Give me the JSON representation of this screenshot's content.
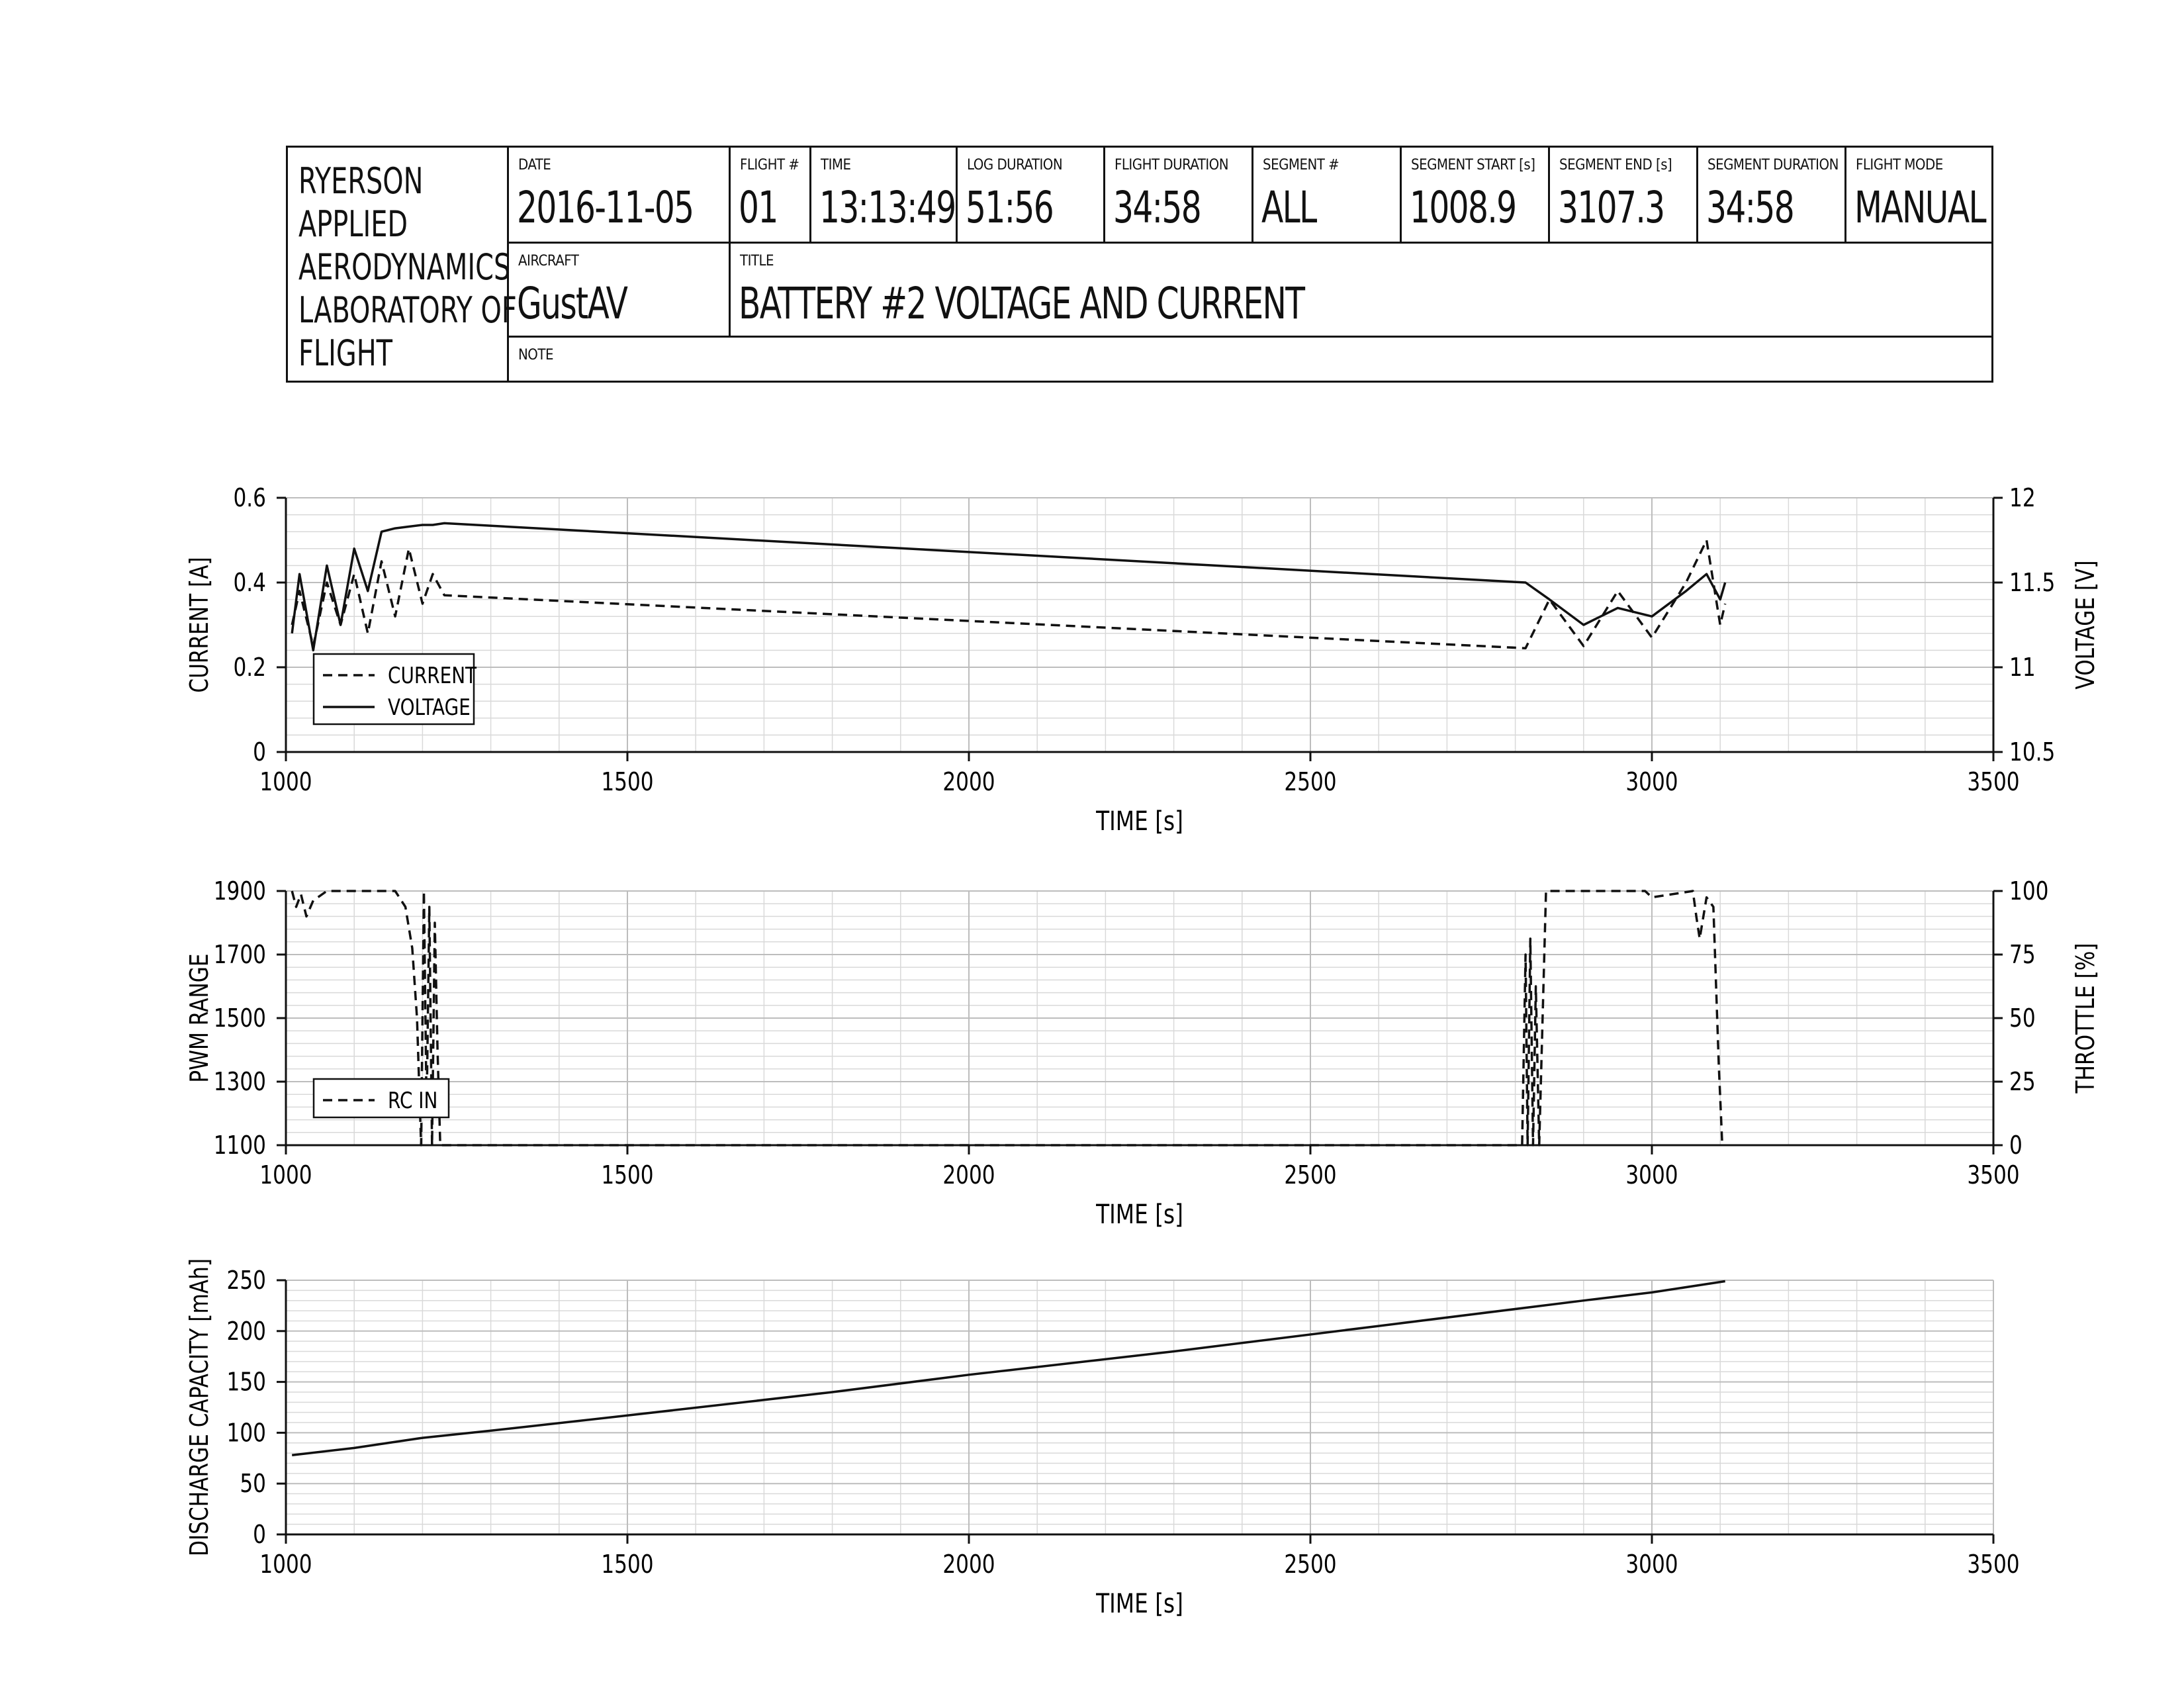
{
  "header": {
    "lab_lines": [
      "RYERSON",
      "APPLIED",
      "AERODYNAMICS",
      "LABORATORY OF",
      "FLIGHT"
    ],
    "fields": [
      {
        "label": "DATE",
        "value": "2016-11-05"
      },
      {
        "label": "FLIGHT #",
        "value": "01"
      },
      {
        "label": "TIME",
        "value": "13:13:49"
      },
      {
        "label": "LOG DURATION",
        "value": "51:56"
      },
      {
        "label": "FLIGHT DURATION",
        "value": "34:58"
      },
      {
        "label": "SEGMENT #",
        "value": "ALL"
      },
      {
        "label": "SEGMENT START [s]",
        "value": "1008.9"
      },
      {
        "label": "SEGMENT END [s]",
        "value": "3107.3"
      },
      {
        "label": "SEGMENT DURATION",
        "value": "34:58"
      },
      {
        "label": "FLIGHT MODE",
        "value": "MANUAL"
      }
    ],
    "aircraft_label": "AIRCRAFT",
    "aircraft": "GustAV",
    "title_label": "TITLE",
    "title": "BATTERY #2 VOLTAGE AND CURRENT",
    "note_label": "NOTE",
    "note": ""
  },
  "chart_data": [
    {
      "type": "line",
      "xlabel": "TIME [s]",
      "ylabel": "CURRENT [A]",
      "y2label": "VOLTAGE [V]",
      "xlim": [
        1000,
        3500
      ],
      "ylim": [
        0,
        0.6
      ],
      "y2lim": [
        10.5,
        12
      ],
      "xticks": [
        1000,
        1500,
        2000,
        2500,
        3000,
        3500
      ],
      "yticks": [
        0,
        0.2,
        0.4,
        0.6
      ],
      "y2ticks": [
        10.5,
        11,
        11.5,
        12
      ],
      "grid": true,
      "legend": "bottom-left",
      "series": [
        {
          "name": "CURRENT",
          "axis": "left",
          "style": "dashed",
          "x": [
            1008.9,
            1020,
            1040,
            1060,
            1080,
            1100,
            1120,
            1140,
            1160,
            1180,
            1200,
            1215,
            1232,
            2815,
            2850,
            2900,
            2950,
            3000,
            3050,
            3080,
            3100,
            3107.3
          ],
          "y": [
            0.3,
            0.38,
            0.25,
            0.4,
            0.3,
            0.42,
            0.28,
            0.45,
            0.32,
            0.48,
            0.35,
            0.42,
            0.37,
            0.245,
            0.36,
            0.25,
            0.38,
            0.27,
            0.4,
            0.5,
            0.3,
            0.35
          ]
        },
        {
          "name": "VOLTAGE",
          "axis": "right",
          "style": "solid",
          "x": [
            1008.9,
            1020,
            1040,
            1060,
            1080,
            1100,
            1120,
            1140,
            1160,
            1180,
            1200,
            1215,
            1232,
            2815,
            2850,
            2900,
            2950,
            3000,
            3050,
            3080,
            3100,
            3107.3
          ],
          "y": [
            11.2,
            11.55,
            11.1,
            11.6,
            11.25,
            11.7,
            11.45,
            11.8,
            11.82,
            11.83,
            11.84,
            11.84,
            11.85,
            11.5,
            11.4,
            11.25,
            11.35,
            11.3,
            11.45,
            11.55,
            11.4,
            11.5
          ]
        }
      ]
    },
    {
      "type": "line",
      "xlabel": "TIME [s]",
      "ylabel": "PWM RANGE",
      "y2label": "THROTTLE [%]",
      "xlim": [
        1000,
        3500
      ],
      "ylim": [
        1100,
        1900
      ],
      "y2lim": [
        0,
        100
      ],
      "xticks": [
        1000,
        1500,
        2000,
        2500,
        3000,
        3500
      ],
      "yticks": [
        1100,
        1300,
        1500,
        1700,
        1900
      ],
      "y2ticks": [
        0,
        25,
        50,
        75,
        100
      ],
      "grid": true,
      "legend": "bottom-left",
      "series": [
        {
          "name": "RC IN",
          "axis": "left",
          "style": "dashed",
          "x": [
            1008.9,
            1015,
            1022,
            1030,
            1040,
            1060,
            1100,
            1140,
            1160,
            1175,
            1185,
            1192,
            1198,
            1202,
            1206,
            1210,
            1214,
            1218,
            1222,
            1226,
            2810,
            2815,
            2818,
            2822,
            2826,
            2830,
            2835,
            2845,
            2870,
            2950,
            2990,
            3000,
            3060,
            3065,
            3070,
            3080,
            3090,
            3094,
            3098,
            3100,
            3103
          ],
          "y": [
            1900,
            1850,
            1890,
            1820,
            1870,
            1900,
            1900,
            1900,
            1900,
            1850,
            1720,
            1500,
            1100,
            1900,
            1200,
            1850,
            1100,
            1800,
            1400,
            1100,
            1100,
            1700,
            1100,
            1750,
            1100,
            1600,
            1100,
            1900,
            1900,
            1900,
            1900,
            1880,
            1900,
            1820,
            1750,
            1880,
            1850,
            1600,
            1350,
            1250,
            1100
          ]
        }
      ]
    },
    {
      "type": "line",
      "xlabel": "TIME [s]",
      "ylabel": "DISCHARGE CAPACITY [mAh]",
      "xlim": [
        1000,
        3500
      ],
      "ylim": [
        0,
        250
      ],
      "xticks": [
        1000,
        1500,
        2000,
        2500,
        3000,
        3500
      ],
      "yticks": [
        0,
        50,
        100,
        150,
        200,
        250
      ],
      "grid": true,
      "series": [
        {
          "name": "",
          "axis": "left",
          "style": "solid",
          "x": [
            1008.9,
            1100,
            1200,
            1300,
            1500,
            1800,
            2000,
            2300,
            2600,
            2900,
            3000,
            3107.3
          ],
          "y": [
            78,
            85,
            95,
            102,
            117,
            140,
            157,
            180,
            205,
            230,
            238,
            249
          ]
        }
      ]
    }
  ]
}
